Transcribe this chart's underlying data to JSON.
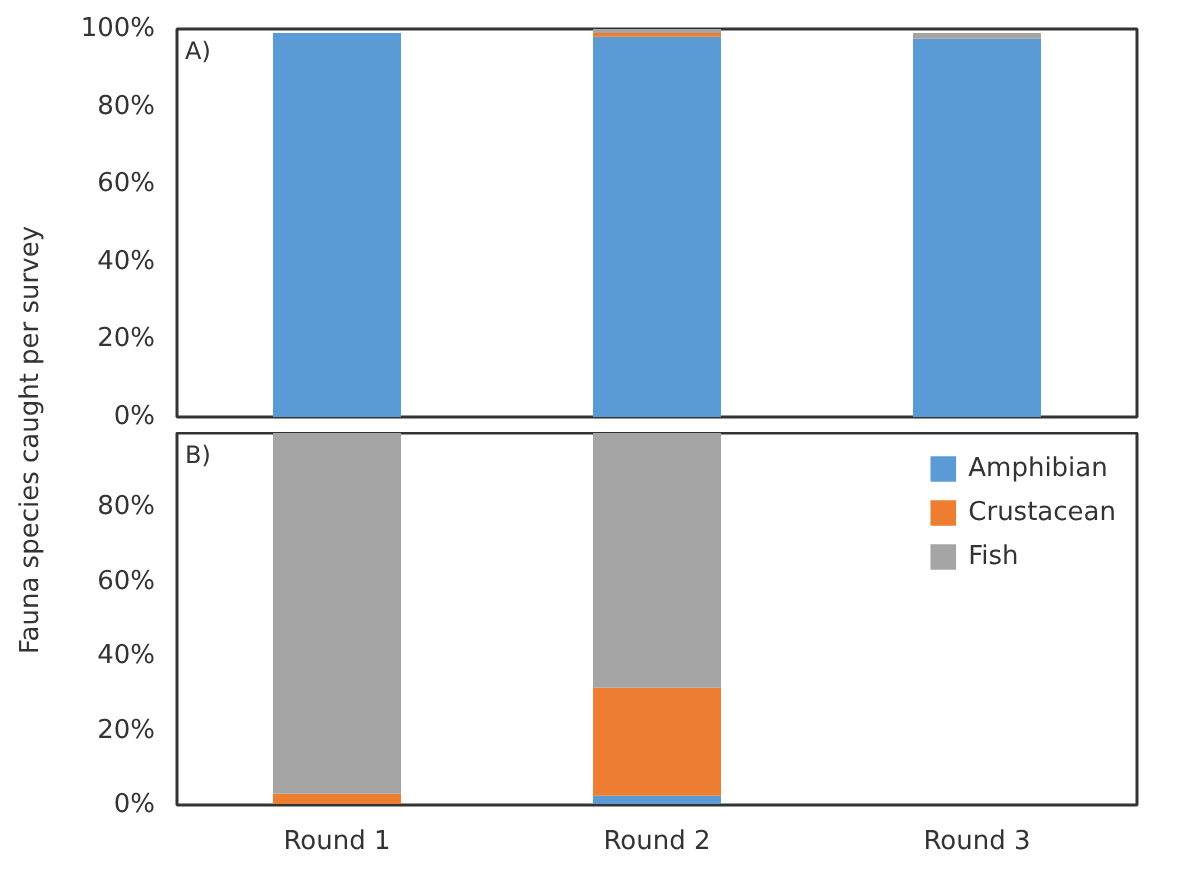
{
  "chart_data": [
    {
      "type": "bar",
      "stacked": true,
      "ylabel": "Fauna species caught per survey",
      "annotations": [
        "A)"
      ],
      "categories": [
        null,
        null,
        null
      ],
      "ylim": [
        0,
        100
      ],
      "yticks": [
        {
          "value": 0,
          "label": "0%"
        },
        {
          "value": 20,
          "label": "20%"
        },
        {
          "value": 40,
          "label": "40%"
        },
        {
          "value": 60,
          "label": "60%"
        },
        {
          "value": 80,
          "label": "80%"
        },
        {
          "value": 100,
          "label": "100%"
        }
      ],
      "tick_labels": "y",
      "grid": false,
      "legend": false,
      "series": [
        {
          "color": "#5b9bd5",
          "values": [
            99,
            98,
            97.5
          ]
        },
        {
          "color": "#ed7d31",
          "values": [
            0,
            1,
            0
          ]
        },
        {
          "color": "#a5a5a5",
          "values": [
            0,
            1,
            1.5
          ]
        }
      ]
    },
    {
      "type": "bar",
      "stacked": true,
      "annotations": [
        "B)"
      ],
      "categories": [
        "Round 1",
        "Round 2",
        "Round 3"
      ],
      "ylim": [
        0,
        100
      ],
      "yticks": [
        {
          "value": 0,
          "label": "0%"
        },
        {
          "value": 20,
          "label": "20%"
        },
        {
          "value": 40,
          "label": "40%"
        },
        {
          "value": 60,
          "label": "60%"
        },
        {
          "value": 80,
          "label": "80%"
        }
      ],
      "grid": false,
      "legend": "top right",
      "series": [
        {
          "name": "Amphibian",
          "color": "#5b9bd5",
          "values": [
            0,
            2.5,
            0
          ]
        },
        {
          "name": "Crustacean",
          "color": "#ed7d31",
          "values": [
            3,
            29,
            0
          ]
        },
        {
          "name": "Fish",
          "color": "#a5a5a5",
          "values": [
            97,
            68.5,
            0
          ]
        }
      ]
    }
  ]
}
